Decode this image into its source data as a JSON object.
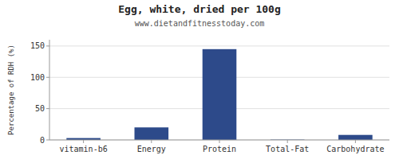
{
  "chart_data": {
    "type": "bar",
    "title": "Egg, white, dried per 100g",
    "subtitle": "www.dietandfitnesstoday.com",
    "ylabel": "Percentage of RDH (%)",
    "categories": [
      "vitamin-b6",
      "Energy",
      "Protein",
      "Total-Fat",
      "Carbohydrate"
    ],
    "values": [
      3,
      20,
      145,
      0.5,
      8
    ],
    "color": "#2d4a8a",
    "ylim": [
      0,
      160
    ],
    "yticks": [
      0,
      50,
      100,
      150
    ],
    "grid": true
  }
}
